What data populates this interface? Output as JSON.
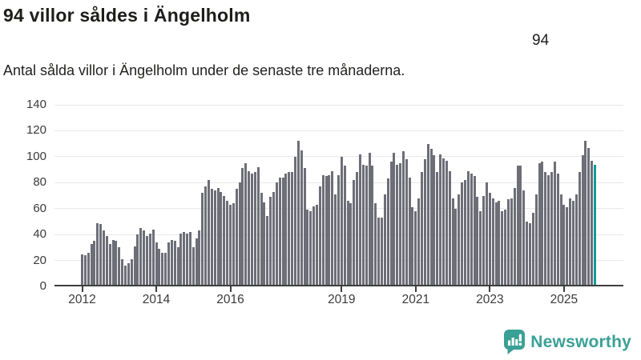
{
  "header": {
    "title": "94 villor såldes i Ängelholm",
    "subtitle": "Antal sålda villor i Ängelholm under de senaste tre månaderna."
  },
  "chart_data": {
    "type": "bar",
    "title": "94 villor såldes i Ängelholm",
    "subtitle": "Antal sålda villor i Ängelholm under de senaste tre månaderna.",
    "xlabel": "",
    "ylabel": "",
    "ylim": [
      0,
      140
    ],
    "yticks": [
      0,
      20,
      40,
      60,
      80,
      100,
      120,
      140
    ],
    "grid": true,
    "x_start_month": "2012-01",
    "x_end_month": "2025-11",
    "xticks": [
      {
        "label": "2012",
        "month": 0
      },
      {
        "label": "2014",
        "month": 24
      },
      {
        "label": "2016",
        "month": 48
      },
      {
        "label": "2019",
        "month": 84
      },
      {
        "label": "2021",
        "month": 108
      },
      {
        "label": "2023",
        "month": 132
      },
      {
        "label": "2025",
        "month": 156
      }
    ],
    "bar_color": "#6e6e78",
    "highlight_color": "#0d9c9c",
    "highlight_index": 166,
    "highlight_label": "94",
    "values": [
      25,
      24,
      26,
      33,
      35,
      49,
      48,
      43,
      39,
      33,
      36,
      35,
      30,
      21,
      16,
      18,
      21,
      31,
      40,
      45,
      43,
      39,
      41,
      44,
      34,
      29,
      26,
      26,
      34,
      36,
      35,
      30,
      41,
      42,
      41,
      42,
      30,
      37,
      43,
      72,
      77,
      82,
      75,
      74,
      76,
      73,
      70,
      66,
      63,
      64,
      75,
      80,
      91,
      95,
      89,
      87,
      88,
      92,
      72,
      65,
      54,
      69,
      73,
      80,
      84,
      84,
      87,
      88,
      88,
      100,
      112,
      105,
      91,
      59,
      58,
      62,
      63,
      77,
      86,
      85,
      86,
      89,
      71,
      86,
      100,
      93,
      66,
      64,
      82,
      88,
      102,
      94,
      93,
      103,
      93,
      64,
      53,
      53,
      71,
      83,
      96,
      103,
      94,
      95,
      104,
      98,
      84,
      61,
      58,
      68,
      88,
      98,
      110,
      106,
      101,
      88,
      102,
      99,
      97,
      89,
      68,
      60,
      71,
      80,
      82,
      89,
      87,
      85,
      69,
      58,
      70,
      80,
      72,
      68,
      65,
      66,
      58,
      59,
      67,
      68,
      76,
      93,
      93,
      74,
      50,
      49,
      57,
      71,
      95,
      96,
      88,
      86,
      88,
      96,
      87,
      71,
      63,
      61,
      68,
      66,
      71,
      88,
      101,
      112,
      107,
      97,
      94
    ]
  },
  "footer": {
    "brand": "Newsworthy",
    "brand_color": "#3aa096"
  }
}
